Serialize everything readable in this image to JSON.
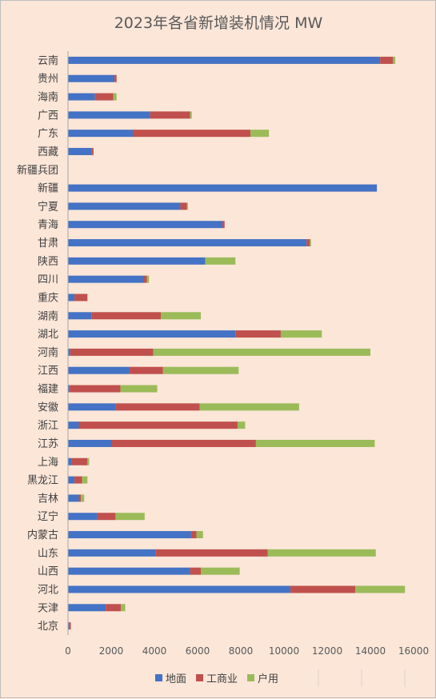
{
  "chart_data": {
    "type": "bar",
    "orientation": "horizontal",
    "stacked": true,
    "title": "2023年各省新增装机情况  MW",
    "xlim": [
      0,
      16000
    ],
    "xticks": [
      0,
      2000,
      4000,
      6000,
      8000,
      10000,
      12000,
      14000,
      16000
    ],
    "grid": false,
    "legend_position": "bottom",
    "categories": [
      "云南",
      "贵州",
      "海南",
      "广西",
      "广东",
      "西藏",
      "新疆兵团",
      "新疆",
      "宁夏",
      "青海",
      "甘肃",
      "陕西",
      "四川",
      "重庆",
      "湖南",
      "湖北",
      "河南",
      "江西",
      "福建",
      "安徽",
      "浙江",
      "江苏",
      "上海",
      "黑龙江",
      "吉林",
      "辽宁",
      "内蒙古",
      "山东",
      "山西",
      "河北",
      "天津",
      "北京"
    ],
    "series": [
      {
        "name": "地面",
        "color": "#4472c4",
        "values": [
          14450,
          2150,
          1250,
          3800,
          3000,
          1100,
          0,
          14300,
          5200,
          7150,
          11050,
          6350,
          3500,
          300,
          1100,
          7750,
          100,
          2850,
          80,
          2200,
          500,
          2000,
          150,
          300,
          500,
          1350,
          5700,
          4050,
          5650,
          10300,
          1750,
          50
        ]
      },
      {
        "name": "工商业",
        "color": "#c0504d",
        "values": [
          600,
          100,
          850,
          1850,
          5450,
          80,
          0,
          0,
          300,
          100,
          150,
          0,
          150,
          600,
          3200,
          2100,
          3850,
          1550,
          2350,
          3900,
          7350,
          6700,
          750,
          350,
          100,
          850,
          250,
          5200,
          500,
          3000,
          700,
          80
        ]
      },
      {
        "name": "户用",
        "color": "#9bbb59",
        "values": [
          100,
          0,
          150,
          80,
          850,
          0,
          0,
          0,
          50,
          0,
          50,
          1400,
          100,
          0,
          1850,
          1900,
          10050,
          3500,
          1700,
          4600,
          350,
          5500,
          80,
          250,
          150,
          1350,
          300,
          5000,
          1800,
          2300,
          200,
          0
        ]
      }
    ]
  }
}
